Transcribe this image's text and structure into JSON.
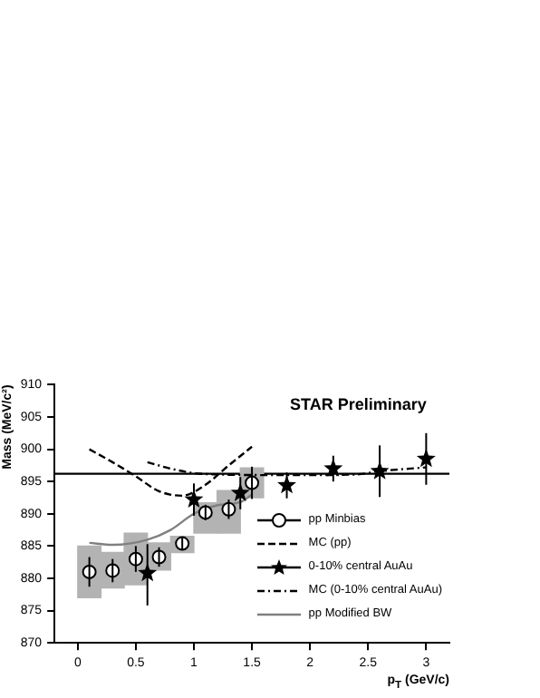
{
  "chart_data": {
    "type": "scatter",
    "title": "STAR Preliminary",
    "xlabel": "p$_{T}$ (GeV/c)",
    "ylabel": "Mass (MeV/c²)",
    "xlim": [
      -0.2,
      3.2
    ],
    "xticks": [
      0,
      0.5,
      1,
      1.5,
      2,
      2.5,
      3
    ],
    "ylim": [
      870,
      910
    ],
    "yticks": [
      870,
      875,
      880,
      885,
      890,
      895,
      900,
      905,
      910
    ],
    "grid": false,
    "legend": "bottom right",
    "ref_lines": [
      {
        "axis": "y",
        "value": 896.2,
        "color": "#000000",
        "line_style": "solid"
      }
    ],
    "series": [
      {
        "type": "bar",
        "color": "#b3b3b3",
        "x": [
          0.1,
          0.3,
          0.5,
          0.7,
          0.9,
          1.1,
          1.3,
          1.5
        ],
        "base": [
          877,
          878.5,
          879,
          881.3,
          884,
          887,
          887,
          892.5
        ],
        "values": [
          8,
          5.5,
          8,
          4.2,
          2.5,
          4.7,
          6.6,
          4.6
        ]
      },
      {
        "name": "pp Minbias",
        "color": "#000000",
        "marker": "circle",
        "x": [
          0.1,
          0.3,
          0.5,
          0.7,
          0.9,
          1.1,
          1.3,
          1.5
        ],
        "values": [
          881,
          881.2,
          883,
          883.3,
          885.4,
          890.2,
          890.7,
          894.8
        ],
        "errors": [
          2.3,
          1.8,
          2,
          1.5,
          1,
          1.2,
          1.5,
          2.5
        ]
      },
      {
        "type": "line",
        "name": "MC (pp)",
        "color": "#000000",
        "marker": "none",
        "line_style": "dashed",
        "x": [
          0.1,
          0.3,
          0.5,
          0.7,
          0.9,
          1.1,
          1.3,
          1.5
        ],
        "values": [
          900,
          898,
          895.8,
          893.5,
          892.8,
          894.5,
          897.5,
          900.4
        ]
      },
      {
        "name": "0-10% central AuAu",
        "color": "#000000",
        "marker": "star",
        "x": [
          0.6,
          1.0,
          1.4,
          1.8,
          2.2,
          2.6,
          3.0
        ],
        "values": [
          880.8,
          892.2,
          893.2,
          894.4,
          897,
          896.6,
          898.5
        ],
        "errors": [
          [
            875.8,
            885.3
          ],
          2.5,
          2.5,
          2,
          2,
          4,
          4
        ]
      },
      {
        "type": "line",
        "name": "MC (0-10% central AuAu)",
        "color": "#000000",
        "marker": "none",
        "line_style": "dashdot",
        "x": [
          0.6,
          0.8,
          1.0,
          1.2,
          1.6,
          2.0,
          2.4,
          2.6,
          3.0
        ],
        "values": [
          898,
          897,
          896.3,
          896.1,
          896,
          896,
          896.1,
          896.6,
          897.2
        ]
      },
      {
        "type": "line",
        "name": "pp Modified BW",
        "color": "#808080",
        "marker": "none",
        "line_style": "solid",
        "x": [
          0.1,
          0.3,
          0.6,
          0.8,
          1.0,
          1.2,
          1.4,
          1.5
        ],
        "values": [
          885.5,
          885.2,
          886,
          887.5,
          890,
          891.3,
          891.8,
          893
        ]
      }
    ]
  }
}
